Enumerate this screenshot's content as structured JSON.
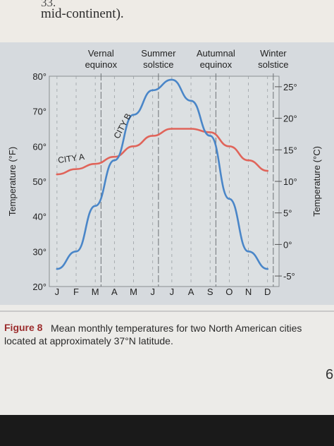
{
  "page": {
    "question_number": "33.",
    "question_text": "mid-continent).",
    "page_edge_text": "6"
  },
  "colors": {
    "city_a": "#e0645a",
    "city_b": "#4a86c8",
    "plot_bg": "#dce0e2",
    "caption_label": "#9b2b2b"
  },
  "chart_data": {
    "type": "line",
    "x_categories": [
      "J",
      "F",
      "M",
      "A",
      "M",
      "J",
      "J",
      "A",
      "S",
      "O",
      "N",
      "D"
    ],
    "y_left": {
      "label": "Temperature (°F)",
      "lim": [
        20,
        80
      ],
      "ticks": [
        "80°",
        "70°",
        "60°",
        "50°",
        "40°",
        "30°",
        "20°"
      ]
    },
    "y_right": {
      "label": "Temperature (°C)",
      "lim": [
        -6.67,
        26.67
      ],
      "ticks": [
        "25°",
        "20°",
        "15°",
        "10°",
        "5°",
        "0°",
        "-5°"
      ]
    },
    "grid": "vertical dashed month lines, solid lines at equinoxes and solstices",
    "markers": [
      {
        "month": 2.7,
        "line1": "Vernal",
        "line2": "equinox"
      },
      {
        "month": 5.7,
        "line1": "Summer",
        "line2": "solstice"
      },
      {
        "month": 8.7,
        "line1": "Autumnal",
        "line2": "equinox"
      },
      {
        "month": 11.7,
        "line1": "Winter",
        "line2": "solstice"
      }
    ],
    "series": [
      {
        "name": "CITY A",
        "values": [
          52,
          53.5,
          55,
          57,
          60,
          63,
          65,
          65,
          64,
          60,
          56,
          53
        ]
      },
      {
        "name": "CITY B",
        "values": [
          25,
          30,
          43,
          56,
          69,
          76,
          79,
          73,
          63,
          45,
          30,
          25
        ]
      }
    ]
  },
  "caption": {
    "label": "Figure 8",
    "text": "Mean monthly temperatures for two North American cities located at approximately 37°N latitude."
  }
}
